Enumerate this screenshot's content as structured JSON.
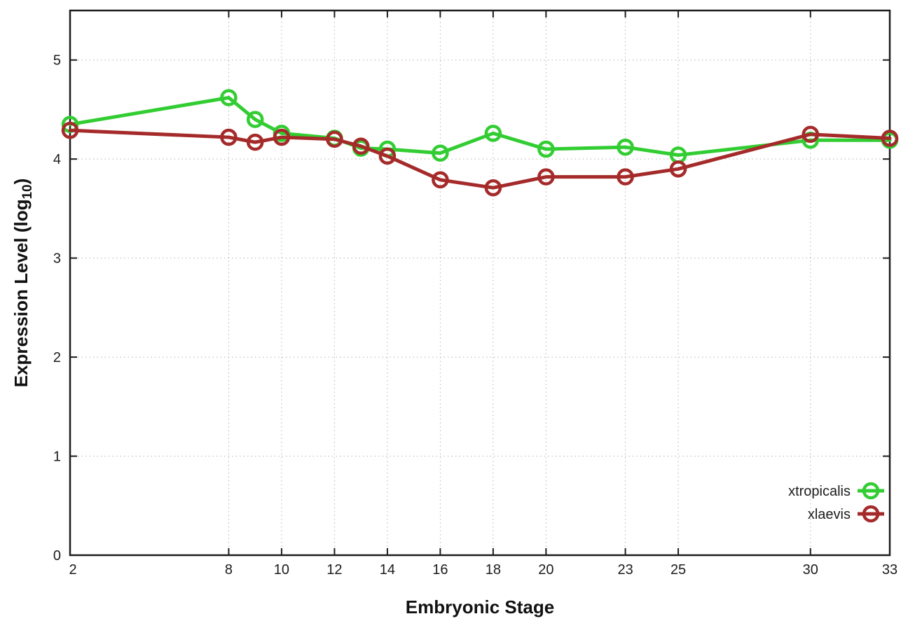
{
  "chart_data": {
    "type": "line",
    "title": "",
    "xlabel": "Embryonic Stage",
    "ylabel": "Expression Level (log10)",
    "ylabel_parts": {
      "main": "Expression Level (log",
      "sub": "10",
      "close": ")"
    },
    "x": [
      2,
      8,
      9,
      10,
      12,
      13,
      14,
      16,
      18,
      20,
      23,
      25,
      30,
      33
    ],
    "x_ticks": [
      2,
      8,
      10,
      12,
      14,
      16,
      18,
      20,
      23,
      25,
      30,
      33
    ],
    "y_ticks": [
      0,
      1,
      2,
      3,
      4,
      5
    ],
    "xlim": [
      2,
      33
    ],
    "ylim": [
      0,
      5.5
    ],
    "grid": true,
    "legend_position": "bottom-right",
    "background_color": "#ffffff",
    "border_color": "#1c1c1c",
    "grid_color": "#b3b3b3",
    "tick_label_color": "#1c1c1c",
    "series": [
      {
        "name": "xtropicalis",
        "color": "#32cd32",
        "values": [
          4.35,
          4.62,
          4.4,
          4.26,
          4.21,
          4.11,
          4.1,
          4.06,
          4.26,
          4.1,
          4.12,
          4.04,
          4.19,
          4.19
        ]
      },
      {
        "name": "xlaevis",
        "color": "#a52a2a",
        "values": [
          4.29,
          4.22,
          4.17,
          4.22,
          4.2,
          4.13,
          4.03,
          3.79,
          3.71,
          3.82,
          3.82,
          3.9,
          4.25,
          4.21
        ]
      }
    ]
  }
}
